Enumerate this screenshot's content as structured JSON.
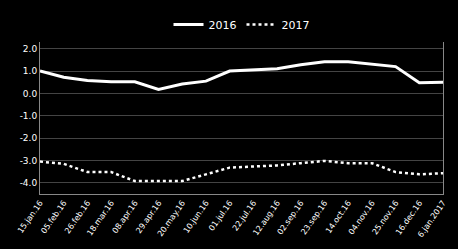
{
  "chart_data": {
    "type": "line",
    "categories": [
      "15.jan.16",
      "05.feb.16",
      "26.feb.16",
      "18.mar.16",
      "08.apr.16",
      "29.apr.16",
      "20.may.16",
      "10.jun.16",
      "01.jul.16",
      "22.jul.16",
      "12.aug.16",
      "02.sep.16",
      "23.sep.16",
      "14.oct.16",
      "04.nov.16",
      "25.nov.16",
      "16.dec.16",
      "6.jan.2017"
    ],
    "series": [
      {
        "name": "2016",
        "color": "#ffffff",
        "values": [
          1.0,
          0.72,
          0.58,
          0.52,
          0.52,
          0.18,
          0.42,
          0.55,
          1.0,
          1.05,
          1.1,
          1.28,
          1.42,
          1.42,
          1.3,
          1.2,
          0.48,
          0.5
        ]
      },
      {
        "name": "2017",
        "color": "#ffffff",
        "values": [
          -3.05,
          -3.15,
          -3.52,
          -3.52,
          -3.92,
          -3.92,
          -3.92,
          -3.62,
          -3.32,
          -3.27,
          -3.22,
          -3.12,
          -3.02,
          -3.12,
          -3.12,
          -3.52,
          -3.62,
          -3.57
        ]
      }
    ],
    "ylim": [
      -4.5,
      2.3
    ],
    "yticks": [
      {
        "value": 2.0,
        "label": "2.0"
      },
      {
        "value": 1.0,
        "label": "1.0"
      },
      {
        "value": 0.0,
        "label": "0.0"
      },
      {
        "value": -1.0,
        "label": "-1.0"
      },
      {
        "value": -2.0,
        "label": "-2.0"
      },
      {
        "value": -3.0,
        "label": "-3.0"
      },
      {
        "value": -4.0,
        "label": "-4.0"
      }
    ],
    "grid": true,
    "legend": "top"
  }
}
